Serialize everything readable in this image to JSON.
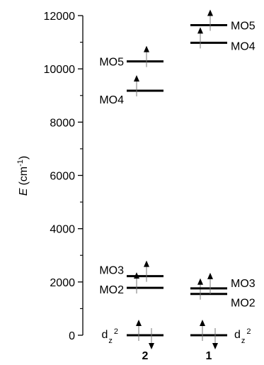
{
  "chart_data": {
    "type": "energy-level diagram",
    "ylabel": {
      "symbol": "E",
      "unit": "(cm",
      "exponent": "-1",
      "close": ")"
    },
    "ylim": [
      0,
      12000
    ],
    "yticks": [
      "0",
      "2000",
      "4000",
      "6000",
      "8000",
      "10000",
      "12000"
    ],
    "columns": [
      {
        "id": "complex-2",
        "label": "2",
        "levels": [
          {
            "name": "dz2",
            "text": "d",
            "sub": "z",
            "sup": "2",
            "energy": 0,
            "electrons": 2,
            "label_side": "left"
          },
          {
            "name": "MO2",
            "text": "MO2",
            "energy": 1780,
            "electrons": 1,
            "label_side": "left"
          },
          {
            "name": "MO3",
            "text": "MO3",
            "energy": 2220,
            "electrons": 1,
            "label_side": "left"
          },
          {
            "name": "MO4",
            "text": "MO4",
            "energy": 9180,
            "electrons": 1,
            "label_side": "left"
          },
          {
            "name": "MO5",
            "text": "MO5",
            "energy": 10280,
            "electrons": 1,
            "label_side": "left"
          }
        ]
      },
      {
        "id": "complex-1",
        "label": "1",
        "levels": [
          {
            "name": "dz2",
            "text": "d",
            "sub": "z",
            "sup": "2",
            "energy": 0,
            "electrons": 2,
            "label_side": "right"
          },
          {
            "name": "MO2",
            "text": "MO2",
            "energy": 1550,
            "electrons": 1,
            "label_side": "right"
          },
          {
            "name": "MO3",
            "text": "MO3",
            "energy": 1760,
            "electrons": 1,
            "label_side": "right"
          },
          {
            "name": "MO4",
            "text": "MO4",
            "energy": 10980,
            "electrons": 1,
            "label_side": "right"
          },
          {
            "name": "MO5",
            "text": "MO5",
            "energy": 11640,
            "electrons": 1,
            "label_side": "right"
          }
        ]
      }
    ]
  }
}
